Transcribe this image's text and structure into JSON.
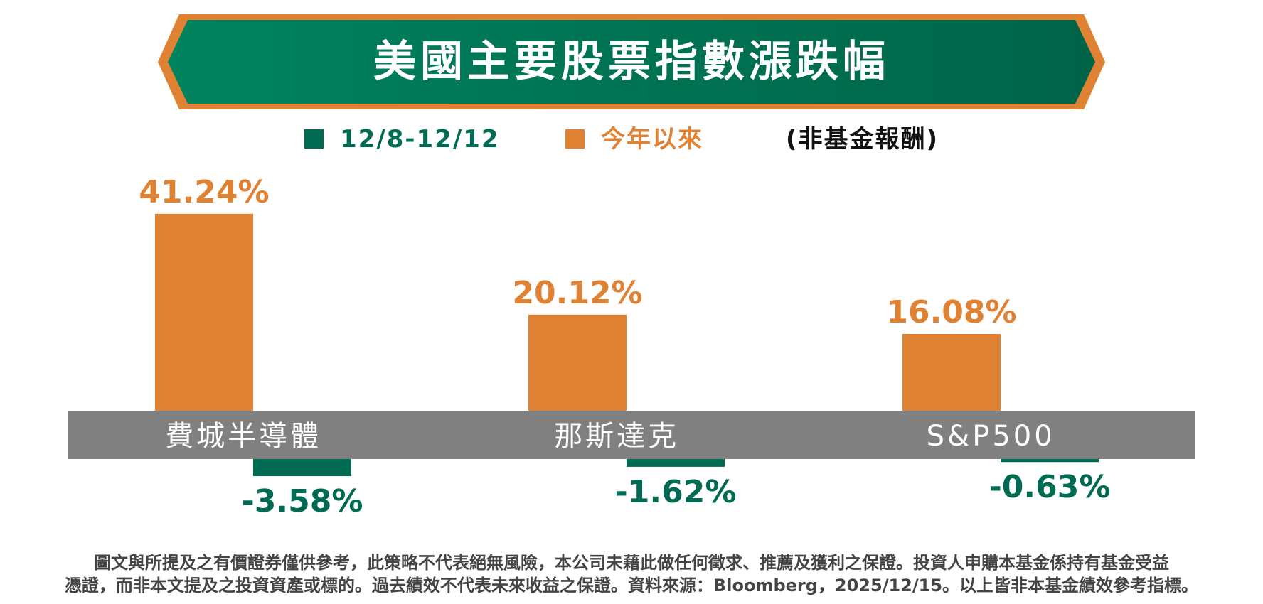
{
  "colors": {
    "weekly": "#006B52",
    "ytd": "#E08233",
    "band": "#808080",
    "banner": "#00795A",
    "banner_border": "#E08233"
  },
  "header": {
    "title": "美國主要股票指數漲跌幅"
  },
  "legend": {
    "weekly_label": "12/8-12/12",
    "ytd_label": "今年以來",
    "note": "(非基金報酬)"
  },
  "chart_data": {
    "type": "bar",
    "title": "美國主要股票指數漲跌幅",
    "categories": [
      "費城半導體",
      "那斯達克",
      "S&P500"
    ],
    "series": [
      {
        "name": "今年以來",
        "values": [
          41.24,
          20.12,
          16.08
        ],
        "labels": [
          "41.24%",
          "20.12%",
          "16.08%"
        ]
      },
      {
        "name": "12/8-12/12",
        "values": [
          -3.58,
          -1.62,
          -0.63
        ],
        "labels": [
          "-3.58%",
          "-1.62%",
          "-0.63%"
        ]
      }
    ],
    "unit": "%",
    "grid": false,
    "legend_position": "top"
  },
  "footer": {
    "line1": "圖文與所提及之有價證券僅供參考，此策略不代表絕無風險，本公司未藉此做任何徵求、推薦及獲利之保證。投資人申購本基金係持有基金受益",
    "line2": "憑證，而非本文提及之投資資產或標的。過去績效不代表未來收益之保證。資料來源：Bloomberg，2025/12/15。以上皆非本基金績效參考指標。"
  }
}
